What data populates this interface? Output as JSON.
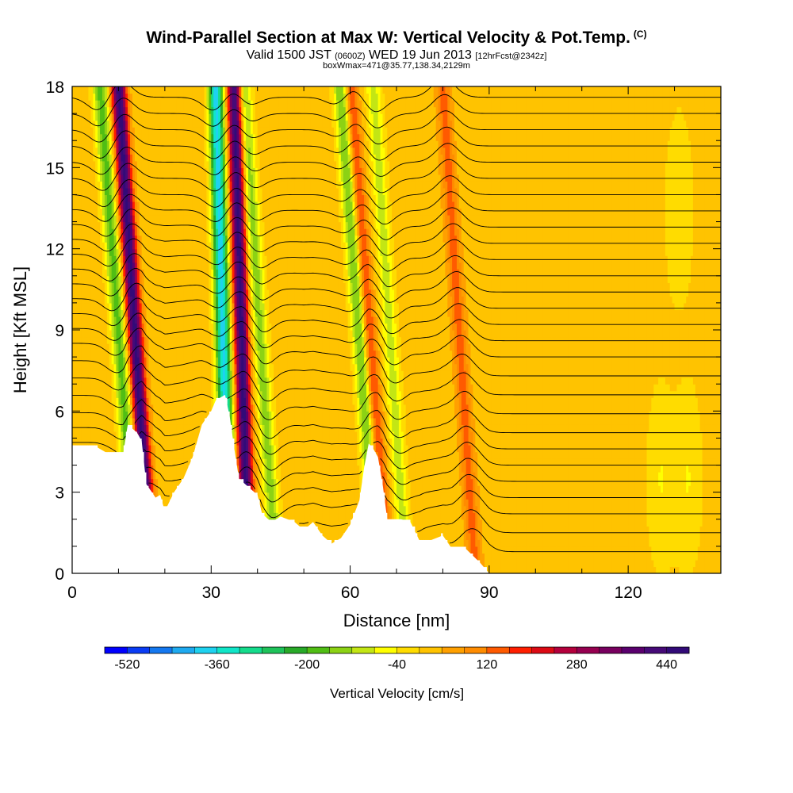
{
  "header": {
    "title": "Wind-Parallel Section at Max W: Vertical Velocity & Pot.Temp.",
    "copyright": "(C)",
    "valid_prefix": "Valid 1500 JST",
    "valid_utc": "(0600Z)",
    "valid_date": "WED 19 Jun 2013",
    "forecast_info": "[12hrFcst@2342z]",
    "box_info": "boxWmax=471@35.77,138.34,2129m"
  },
  "chart_data": {
    "type": "heatmap",
    "title": "Wind-Parallel Section at Max W: Vertical Velocity & Pot.Temp.",
    "xlabel": "Distance [nm]",
    "ylabel": "Height [Kft MSL]",
    "xlim": [
      0,
      140
    ],
    "ylim": [
      0,
      18
    ],
    "x_ticks": [
      0,
      30,
      60,
      90,
      120
    ],
    "y_ticks": [
      0,
      3,
      6,
      9,
      12,
      15,
      18
    ],
    "grid": false,
    "colorbar": {
      "label": "Vertical Velocity [cm/s]",
      "placement": "bottom",
      "tick_labels": [
        "-520",
        "-360",
        "-200",
        "-40",
        "120",
        "280",
        "440"
      ],
      "min": -560,
      "max": 480,
      "step": 40,
      "colors": [
        "#0000ff",
        "#0a3cf5",
        "#1478f0",
        "#1eaaf0",
        "#1ed2f0",
        "#10e6c8",
        "#14dc8c",
        "#1ec35a",
        "#28aa28",
        "#50be14",
        "#8cd214",
        "#c3e614",
        "#ffff00",
        "#ffdc00",
        "#ffc300",
        "#ffa000",
        "#ff8c00",
        "#ff5a00",
        "#ff1e00",
        "#dc0a14",
        "#b4003c",
        "#960050",
        "#78005f",
        "#5a006e",
        "#460a78",
        "#320a78"
      ]
    },
    "terrain_kft": [
      [
        0,
        4.7
      ],
      [
        5,
        4.7
      ],
      [
        8,
        4.4
      ],
      [
        11,
        4.4
      ],
      [
        12,
        5.5
      ],
      [
        14,
        5.2
      ],
      [
        15,
        4.9
      ],
      [
        16,
        3.3
      ],
      [
        18,
        2.8
      ],
      [
        19,
        2.9
      ],
      [
        20,
        2.3
      ],
      [
        22,
        3.0
      ],
      [
        24,
        3.5
      ],
      [
        26,
        4.3
      ],
      [
        28,
        5.5
      ],
      [
        30,
        6.0
      ],
      [
        31,
        6.4
      ],
      [
        33,
        6.6
      ],
      [
        34,
        5.8
      ],
      [
        35,
        4.6
      ],
      [
        36,
        3.5
      ],
      [
        38,
        3.2
      ],
      [
        40,
        2.9
      ],
      [
        41,
        2.2
      ],
      [
        43,
        1.9
      ],
      [
        45,
        2.1
      ],
      [
        48,
        1.9
      ],
      [
        50,
        1.6
      ],
      [
        52,
        1.9
      ],
      [
        54,
        1.4
      ],
      [
        56,
        1.1
      ],
      [
        58,
        1.3
      ],
      [
        60,
        1.8
      ],
      [
        62,
        2.7
      ],
      [
        63,
        3.9
      ],
      [
        64,
        4.8
      ],
      [
        65,
        4.6
      ],
      [
        66,
        4.3
      ],
      [
        67,
        3.3
      ],
      [
        68,
        2.0
      ],
      [
        71,
        2.0
      ],
      [
        73,
        1.9
      ],
      [
        75,
        1.2
      ],
      [
        77,
        1.2
      ],
      [
        80,
        1.4
      ],
      [
        82,
        0.9
      ],
      [
        85,
        0.9
      ],
      [
        88,
        0.4
      ],
      [
        90,
        0.0
      ],
      [
        140,
        0.0
      ]
    ],
    "updrafts": [
      {
        "x_base": 17,
        "x_top": 10,
        "w_peak": 440
      },
      {
        "x_base": 38,
        "x_top": 35,
        "w_peak": 440
      },
      {
        "x_base": 68,
        "x_top": 60,
        "w_peak": 160
      },
      {
        "x_base": 87,
        "x_top": 80,
        "w_peak": 120
      }
    ],
    "downdrafts": [
      {
        "x_base": 14,
        "x_top": 6,
        "w_min": -200
      },
      {
        "x_base": 34,
        "x_top": 31,
        "w_min": -400
      },
      {
        "x_base": 44,
        "x_top": 37,
        "w_min": -160
      },
      {
        "x_base": 66,
        "x_top": 58,
        "w_min": -200
      },
      {
        "x_base": 72,
        "x_top": 65,
        "w_min": -120
      }
    ],
    "background_patches": [
      {
        "x": 131,
        "y": 13.5,
        "w_value": -40
      },
      {
        "x": 127,
        "y": 3.5,
        "w_value": -40
      },
      {
        "x": 133,
        "y": 3.5,
        "w_value": -40
      }
    ],
    "theta_contours_kft": [
      0.8,
      1.5,
      2.2,
      2.8,
      3.4,
      4.0,
      4.6,
      5.2,
      5.9,
      6.6,
      7.3,
      8.0,
      8.6,
      9.2,
      9.8,
      10.4,
      11.0,
      11.6,
      12.2,
      12.8,
      13.4,
      14.0,
      14.6,
      15.2,
      15.8,
      16.4,
      17.0,
      17.6
    ]
  }
}
